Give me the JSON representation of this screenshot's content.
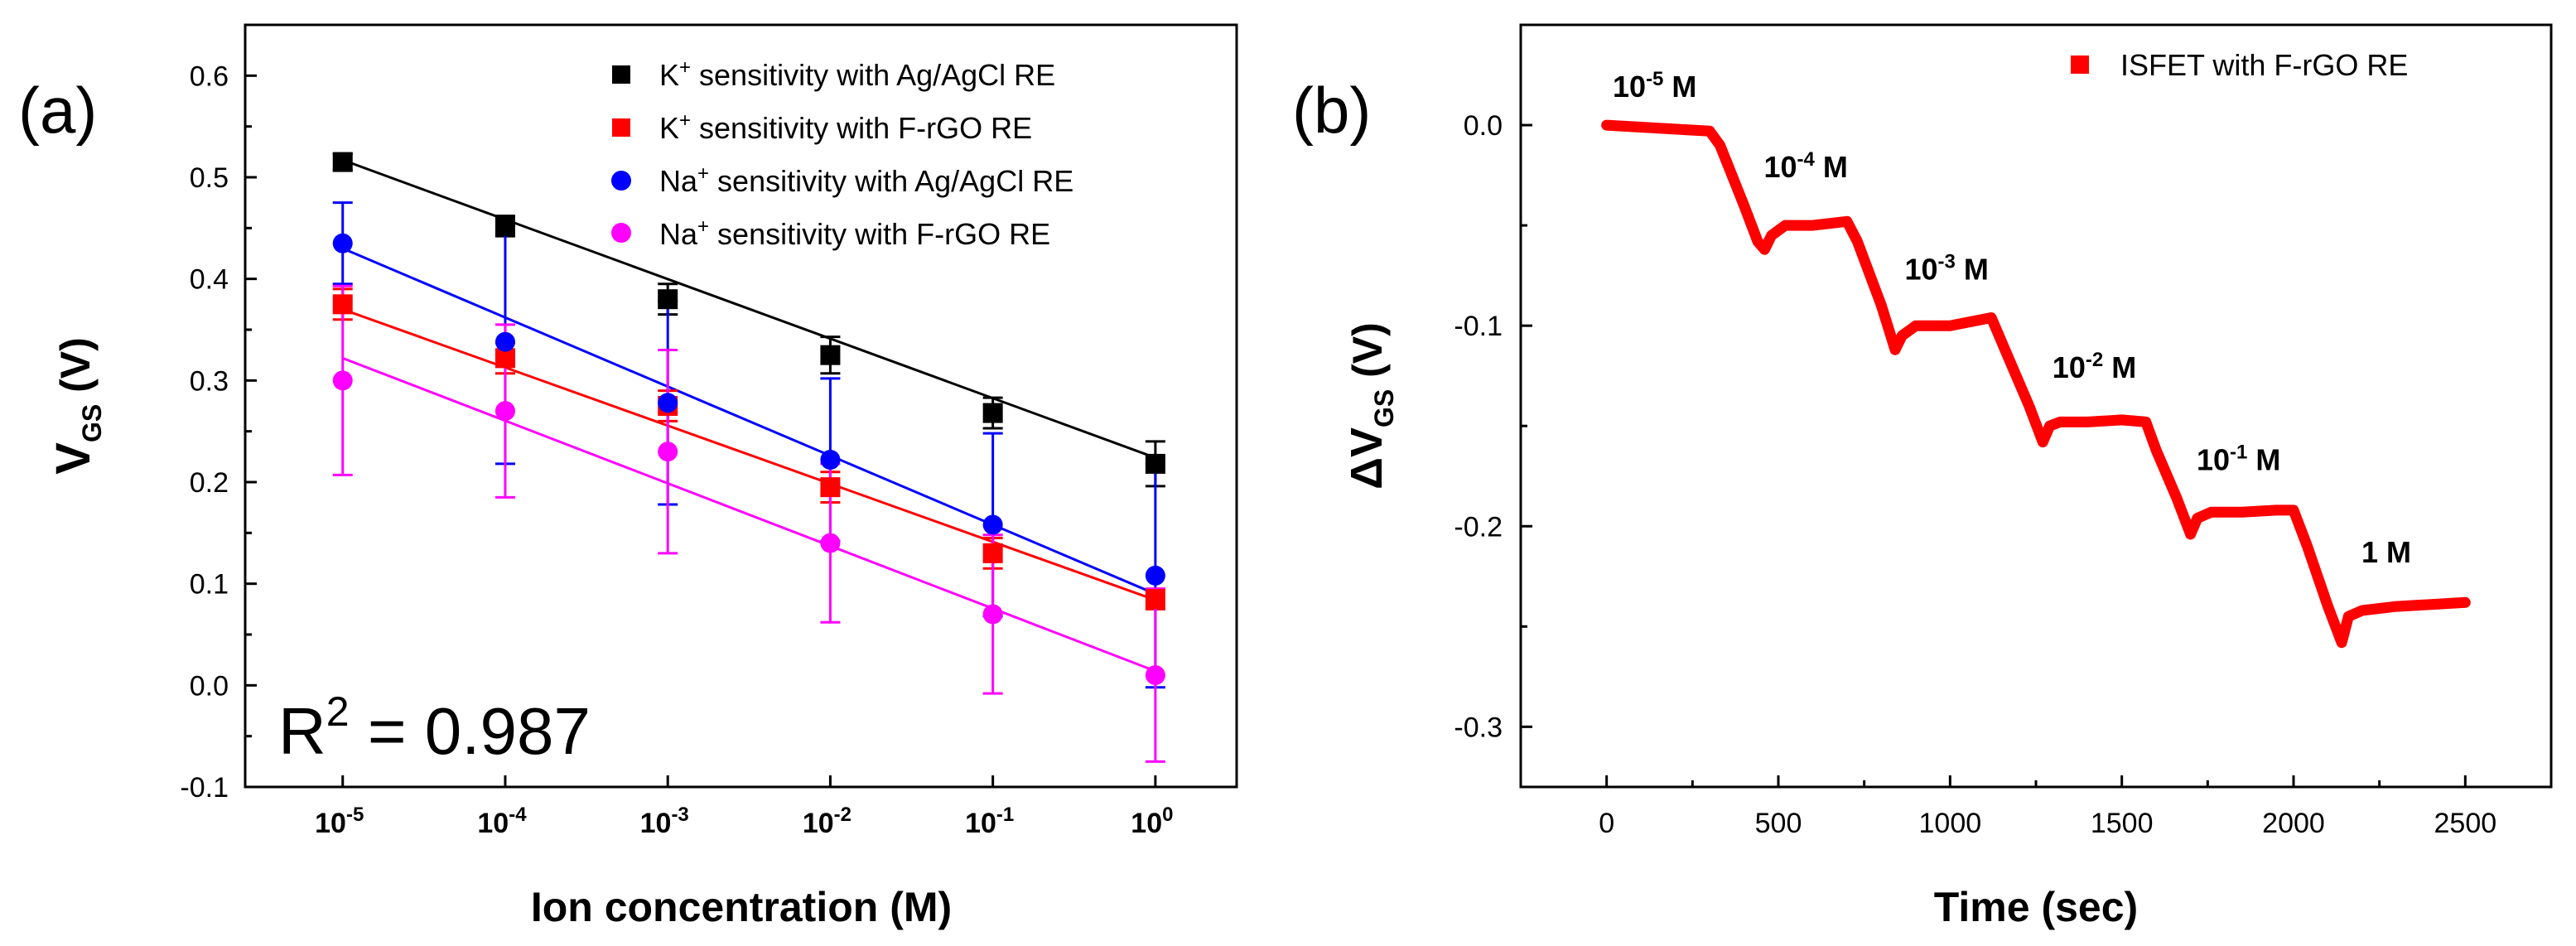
{
  "chart_data": [
    {
      "type": "scatter",
      "panel_label": "(a)",
      "title": "",
      "xlabel": "Ion concentration (M)",
      "ylabel_main": "V",
      "ylabel_sub": "GS",
      "ylabel_unit": " (V)",
      "ylim": [
        -0.1,
        0.65
      ],
      "yticks": [
        -0.1,
        0.0,
        0.1,
        0.2,
        0.3,
        0.4,
        0.5,
        0.6
      ],
      "ytick_labels": [
        "-0.1",
        "0.0",
        "0.1",
        "0.2",
        "0.3",
        "0.4",
        "0.5",
        "0.6"
      ],
      "xlim_log": [
        -5.6,
        0.5
      ],
      "x_log": [
        -5,
        -4,
        -3,
        -2,
        -1,
        0
      ],
      "xtick_base": [
        "10",
        "10",
        "10",
        "10",
        "10",
        "10"
      ],
      "xtick_exp": [
        "-5",
        "-4",
        "-3",
        "-2",
        "-1",
        "0"
      ],
      "annotation": {
        "text": "R",
        "sup": "2",
        "rest": " = 0.987"
      },
      "legend_position": "top-right",
      "series": [
        {
          "name_pre": "K",
          "name_sup": "+",
          "name_post": " sensitivity with Ag/AgCl RE",
          "color": "#000000",
          "marker": "square",
          "values": [
            0.515,
            0.452,
            0.38,
            0.325,
            0.268,
            0.218
          ],
          "errors": [
            0.008,
            0.01,
            0.015,
            0.018,
            0.015,
            0.022
          ],
          "fit": [
            0.517,
            0.224
          ]
        },
        {
          "name_pre": "K",
          "name_sup": "+",
          "name_post": " sensitivity with F-rGO RE",
          "color": "#ff0000",
          "marker": "square",
          "values": [
            0.375,
            0.322,
            0.275,
            0.195,
            0.13,
            0.085
          ],
          "errors": [
            0.015,
            0.015,
            0.015,
            0.015,
            0.015,
            0.01
          ],
          "fit": [
            0.37,
            0.084
          ]
        },
        {
          "name_pre": "Na",
          "name_sup": "+",
          "name_post": " sensitivity with Ag/AgCl RE",
          "color": "#0000ff",
          "marker": "circle",
          "values": [
            0.435,
            0.338,
            0.278,
            0.222,
            0.158,
            0.108
          ],
          "errors": [
            0.04,
            0.12,
            0.1,
            0.08,
            0.09,
            0.11
          ],
          "fit": [
            0.43,
            0.09
          ]
        },
        {
          "name_pre": "Na",
          "name_sup": "+",
          "name_post": " sensitivity with F-rGO RE",
          "color": "#ff00ff",
          "marker": "circle",
          "values": [
            0.3,
            0.27,
            0.23,
            0.14,
            0.07,
            0.01
          ],
          "errors": [
            0.093,
            0.085,
            0.1,
            0.078,
            0.078,
            0.085
          ],
          "fit": [
            0.322,
            0.014
          ]
        }
      ]
    },
    {
      "type": "line",
      "panel_label": "(b)",
      "title": "",
      "xlabel": "Time (sec)",
      "ylabel_main": "ΔV",
      "ylabel_sub": "GS",
      "ylabel_unit": " (V)",
      "xlim": [
        -250,
        2750
      ],
      "ylim": [
        -0.33,
        0.05
      ],
      "xticks": [
        0,
        500,
        1000,
        1500,
        2000,
        2500
      ],
      "xtick_labels": [
        "0",
        "500",
        "1000",
        "1500",
        "2000",
        "2500"
      ],
      "yticks": [
        0.0,
        -0.1,
        -0.2,
        -0.3
      ],
      "ytick_labels": [
        "0.0",
        "-0.1",
        "-0.2",
        "-0.3"
      ],
      "legend_position": "top-right",
      "series": [
        {
          "name": "ISFET with F-rGO RE",
          "color": "#ff0000",
          "x": [
            0,
            100,
            200,
            300,
            330,
            400,
            440,
            460,
            480,
            520,
            600,
            700,
            730,
            800,
            840,
            860,
            900,
            1000,
            1120,
            1150,
            1230,
            1270,
            1290,
            1320,
            1400,
            1500,
            1570,
            1600,
            1660,
            1700,
            1720,
            1760,
            1850,
            1950,
            2000,
            2040,
            2100,
            2140,
            2160,
            2200,
            2300,
            2400,
            2500
          ],
          "y": [
            0.0,
            -0.001,
            -0.002,
            -0.003,
            -0.01,
            -0.04,
            -0.058,
            -0.062,
            -0.055,
            -0.05,
            -0.05,
            -0.048,
            -0.058,
            -0.09,
            -0.112,
            -0.105,
            -0.1,
            -0.1,
            -0.096,
            -0.108,
            -0.14,
            -0.158,
            -0.15,
            -0.148,
            -0.148,
            -0.147,
            -0.148,
            -0.162,
            -0.186,
            -0.204,
            -0.196,
            -0.193,
            -0.193,
            -0.192,
            -0.192,
            -0.21,
            -0.24,
            -0.258,
            -0.245,
            -0.242,
            -0.24,
            -0.239,
            -0.238
          ]
        }
      ],
      "annotations": [
        {
          "base": "10",
          "sup": "-5",
          "rest": " M",
          "x": 140,
          "y": 0.014
        },
        {
          "base": "10",
          "sup": "-4",
          "rest": " M",
          "x": 580,
          "y": -0.026
        },
        {
          "base": "10",
          "sup": "-3",
          "rest": " M",
          "x": 990,
          "y": -0.077
        },
        {
          "base": "10",
          "sup": "-2",
          "rest": " M",
          "x": 1420,
          "y": -0.126
        },
        {
          "base": "10",
          "sup": "-1",
          "rest": " M",
          "x": 1840,
          "y": -0.172
        },
        {
          "base": "",
          "sup": "",
          "rest": "1 M",
          "x": 2270,
          "y": -0.218
        }
      ]
    }
  ]
}
